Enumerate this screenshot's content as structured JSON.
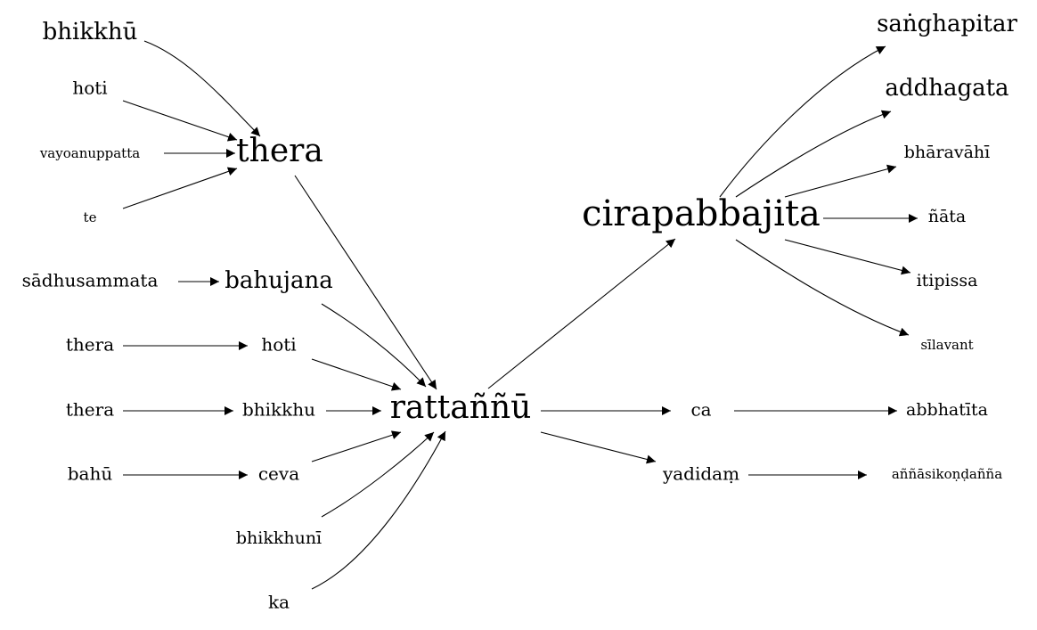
{
  "nodes": {
    "bhikkhu_top": "bhikkhū",
    "hoti_top": "hoti",
    "vayoanuppatta": "vayoanuppatta",
    "te": "te",
    "thera_hub": "thera",
    "sadhusammata": "sādhusammata",
    "bahujana": "bahujana",
    "thera_left_1": "thera",
    "hoti_mid": "hoti",
    "thera_left_2": "thera",
    "bhikkhu_mid": "bhikkhu",
    "bahu": "bahū",
    "ceva": "ceva",
    "bhikkhuni": "bhikkhunī",
    "ka": "ka",
    "rattannu": "rattaññū",
    "cirapabbajita": "cirapabbajita",
    "sanghapitar": "saṅghapitar",
    "addhagata": "addhagata",
    "bharavahi": "bhāravāhī",
    "nata": "ñāta",
    "itipissa": "itipissa",
    "silavant": "sīlavant",
    "ca": "ca",
    "abbhatita": "abbhatīta",
    "yadidam": "yadidaṃ",
    "annasikondanna": "aññāsikoṇḍañña"
  }
}
